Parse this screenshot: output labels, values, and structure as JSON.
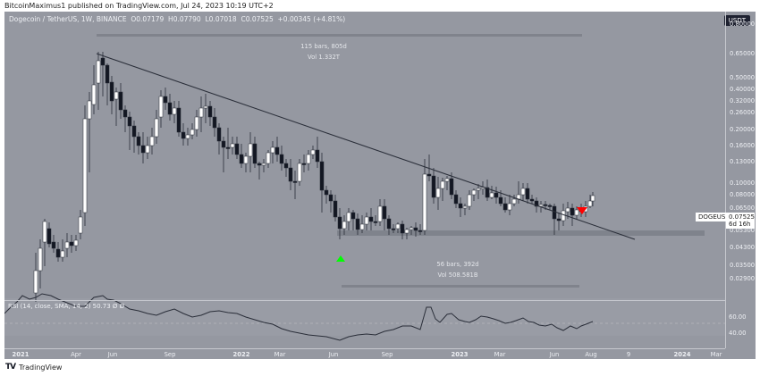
{
  "publisher": "BitcoinMaximus1 published on TradingView.com, Jul 24, 2023 10:19 UTC+2",
  "legend": {
    "symbol": "Dogecoin / TetherUS, 1W, BINANCE",
    "o_label": "O",
    "o": "0.07179",
    "h_label": "H",
    "h": "0.07790",
    "l_label": "L",
    "l": "0.07018",
    "c_label": "C",
    "c": "0.07525",
    "change": "+0.00345 (+4.81%)"
  },
  "currency_button": "USDT",
  "price_label": {
    "ticker": "DOGEUSDT",
    "price": "0.07525",
    "countdown": "6d 16h"
  },
  "measure_top": {
    "bars": "115 bars, 805d",
    "vol": "Vol 1.332T"
  },
  "measure_bottom": {
    "bars": "56 bars, 392d",
    "vol": "Vol 508.581B"
  },
  "rsi": {
    "label": "RSI (14, close, SMA, 14, 2)  50.73  Ø  Ø",
    "ticks": [
      "60.00",
      "40.00"
    ]
  },
  "footer": {
    "logo": "TV",
    "brand": "TradingView"
  },
  "colors": {
    "background": "#9598a1",
    "up": "#ffffff",
    "down": "#131722",
    "trendline": "#2a2e39",
    "support": "#7f838c",
    "buy_arrow": "#00ff00",
    "sell_arrow": "#ff0000"
  },
  "chart_data": {
    "type": "candlestick",
    "title": "Dogecoin / TetherUS, 1W, BINANCE",
    "scale": "log",
    "y_ticks": [
      "0.80000",
      "0.65000",
      "0.50000",
      "0.40000",
      "0.32000",
      "0.26000",
      "0.20000",
      "0.16000",
      "0.13000",
      "0.10000",
      "0.08000",
      "0.06500",
      "0.05300",
      "0.04300",
      "0.03500",
      "0.02900"
    ],
    "x_ticks": [
      "2021",
      "Apr",
      "Jun",
      "Sep",
      "2022",
      "Mar",
      "Jun",
      "Sep",
      "2023",
      "Mar",
      "Jun",
      "Aug",
      "9",
      "2024",
      "Mar"
    ],
    "last": {
      "open": 0.07179,
      "high": 0.0779,
      "low": 0.07018,
      "close": 0.07525,
      "change": 0.00345,
      "change_pct": 4.81
    },
    "annotations": [
      {
        "type": "trendline",
        "from": "May 2021 ~0.60",
        "to": "Aug 2023 ~0.058",
        "label": "descending resistance"
      },
      {
        "type": "horizontal_support",
        "level": 0.06,
        "label": "support zone"
      },
      {
        "type": "arrow_up",
        "color": "green",
        "at": "Jun 2022 low"
      },
      {
        "type": "arrow_down",
        "color": "red",
        "at": "Jul 2023"
      },
      {
        "type": "measure",
        "text": "115 bars, 805d / Vol 1.332T"
      },
      {
        "type": "measure",
        "text": "56 bars, 392d / Vol 508.581B"
      }
    ],
    "indicator": {
      "name": "RSI",
      "params": "14, close, SMA, 14, 2",
      "value": 50.73,
      "ticks": [
        60,
        40
      ]
    }
  }
}
